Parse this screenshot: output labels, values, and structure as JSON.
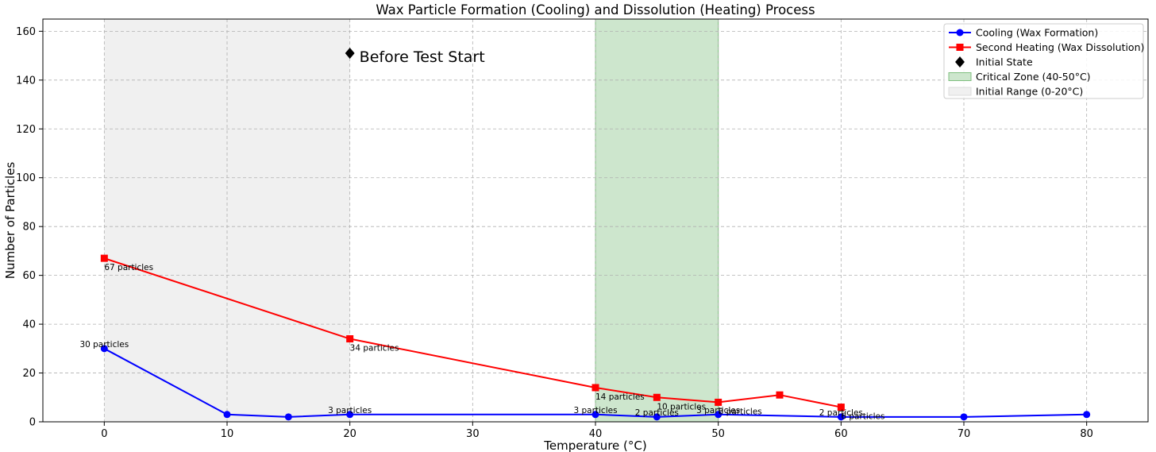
{
  "chart_data": {
    "type": "line",
    "title": "Wax Particle Formation (Cooling) and Dissolution (Heating) Process",
    "xlabel": "Temperature (°C)",
    "ylabel": "Number of Particles",
    "xlim": [
      -5,
      85
    ],
    "ylim": [
      0,
      165
    ],
    "xticks": [
      0,
      10,
      20,
      30,
      40,
      50,
      60,
      70,
      80
    ],
    "yticks": [
      0,
      20,
      40,
      60,
      80,
      100,
      120,
      140,
      160
    ],
    "grid": true,
    "legend_position": "top-right",
    "series": [
      {
        "name": "Cooling (Wax Formation)",
        "color": "#0000ff",
        "marker": "circle",
        "x": [
          0,
          10,
          15,
          20,
          40,
          45,
          50,
          60,
          70,
          80
        ],
        "y": [
          30,
          3,
          2,
          3,
          3,
          2,
          3,
          2,
          2,
          3
        ]
      },
      {
        "name": "Second Heating (Wax Dissolution)",
        "color": "#ff0000",
        "marker": "square",
        "x": [
          0,
          20,
          40,
          45,
          50,
          55,
          60
        ],
        "y": [
          67,
          34,
          14,
          10,
          8,
          11,
          6
        ]
      },
      {
        "name": "Initial State",
        "color": "#000000",
        "marker": "diamond",
        "x": [
          20
        ],
        "y": [
          151
        ]
      }
    ],
    "regions": [
      {
        "name": "Critical Zone (40-50°C)",
        "x0": 40,
        "x1": 50,
        "color": "#cde6cd"
      },
      {
        "name": "Initial Range (0-20°C)",
        "x0": 0,
        "x1": 20,
        "color": "#f0f0f0"
      }
    ],
    "data_labels": [
      {
        "x": 0,
        "y": 30,
        "text": "30 particles",
        "anchor": "above"
      },
      {
        "x": 20,
        "y": 3,
        "text": "3 particles",
        "anchor": "above"
      },
      {
        "x": 40,
        "y": 3,
        "text": "3 particles",
        "anchor": "above"
      },
      {
        "x": 45,
        "y": 2,
        "text": "2 particles",
        "anchor": "above"
      },
      {
        "x": 50,
        "y": 3,
        "text": "3 particles",
        "anchor": "above"
      },
      {
        "x": 60,
        "y": 2,
        "text": "2 particles",
        "anchor": "above"
      },
      {
        "x": 0,
        "y": 67,
        "text": "67 particles",
        "anchor": "below-right"
      },
      {
        "x": 20,
        "y": 34,
        "text": "34 particles",
        "anchor": "below-right"
      },
      {
        "x": 40,
        "y": 14,
        "text": "14 particles",
        "anchor": "below-right"
      },
      {
        "x": 45,
        "y": 10,
        "text": "10 particles",
        "anchor": "below-right"
      },
      {
        "x": 50,
        "y": 8,
        "text": "8 particles",
        "anchor": "below-right"
      },
      {
        "x": 60,
        "y": 6,
        "text": "6 particles",
        "anchor": "below-right"
      }
    ],
    "annotations": [
      {
        "x": 20,
        "y": 151,
        "text": "Before Test Start"
      }
    ]
  }
}
